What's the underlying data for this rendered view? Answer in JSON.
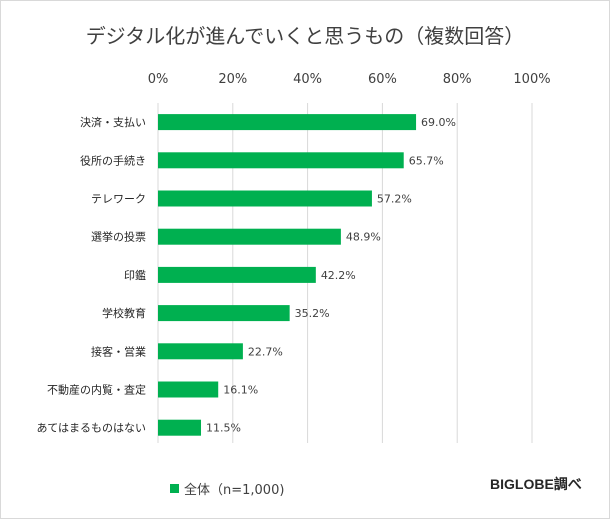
{
  "chart_data": {
    "type": "bar",
    "orientation": "horizontal",
    "title": "デジタル化が進んでいくと思うもの（複数回答）",
    "categories": [
      "決済・支払い",
      "役所の手続き",
      "テレワーク",
      "選挙の投票",
      "印鑑",
      "学校教育",
      "接客・営業",
      "不動産の内覧・査定",
      "あてはまるものはない"
    ],
    "series": [
      {
        "name": "全体（n=1,000)",
        "values": [
          69.0,
          65.7,
          57.2,
          48.9,
          42.2,
          35.2,
          22.7,
          16.1,
          11.5
        ],
        "data_labels": [
          "69.0%",
          "65.7%",
          "57.2%",
          "48.9%",
          "42.2%",
          "35.2%",
          "22.7%",
          "16.1%",
          "11.5%"
        ]
      }
    ],
    "x_ticks": [
      "0%",
      "20%",
      "40%",
      "60%",
      "80%",
      "100%"
    ],
    "xlim": [
      0,
      100
    ],
    "x_axis_position": "top",
    "grid": true,
    "legend_position": "bottom-left",
    "bar_color": "#00B050"
  },
  "source_credit": "BIGLOBE調べ"
}
